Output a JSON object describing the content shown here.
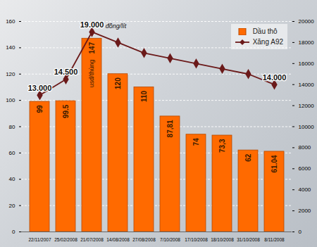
{
  "chart_data": {
    "type": "bar",
    "categories": [
      "22/11/2007",
      "25/02/2008",
      "21/07/2008",
      "14/08/2008",
      "27/08/2008",
      "7/10/2008",
      "17/10/2008",
      "18/10/2008",
      "31/10/2008",
      "8/11/2008"
    ],
    "series": [
      {
        "name": "Dầu thô",
        "type": "bar",
        "color": "#ff6a00",
        "values": [
          99,
          99.5,
          147,
          120,
          110,
          87.81,
          74,
          73.3,
          62,
          61.04
        ],
        "value_labels": [
          "99",
          "99.5",
          "147",
          "120",
          "110",
          "87,81",
          "74",
          "73,3",
          "62",
          "61.04"
        ]
      },
      {
        "name": "Xăng A92",
        "type": "line",
        "axis": "y2",
        "color": "#6b1a1a",
        "marker": "diamond",
        "line_style": "solid",
        "values": [
          13000,
          14500,
          19000,
          18000,
          17000,
          16500,
          16000,
          15500,
          15000,
          14000
        ],
        "value_labels": [
          "13.000",
          "14.500",
          "19.000",
          null,
          null,
          null,
          null,
          null,
          null,
          "14.000"
        ]
      }
    ],
    "annotations": [
      {
        "text": "đồng/lít",
        "series": "Xăng A92",
        "category": "21/07/2008"
      },
      {
        "text": "usd/thùng",
        "series": "Dầu thô",
        "category": "21/07/2008"
      }
    ],
    "ylim": [
      0,
      160
    ],
    "yticks": [
      0,
      20,
      40,
      60,
      80,
      100,
      120,
      140,
      160
    ],
    "y2lim": [
      0,
      20000
    ],
    "y2ticks": [
      0,
      2000,
      4000,
      6000,
      8000,
      10000,
      12000,
      14000,
      16000,
      18000,
      20000
    ],
    "grid": true,
    "data_labels": true,
    "legend": "top-right"
  }
}
